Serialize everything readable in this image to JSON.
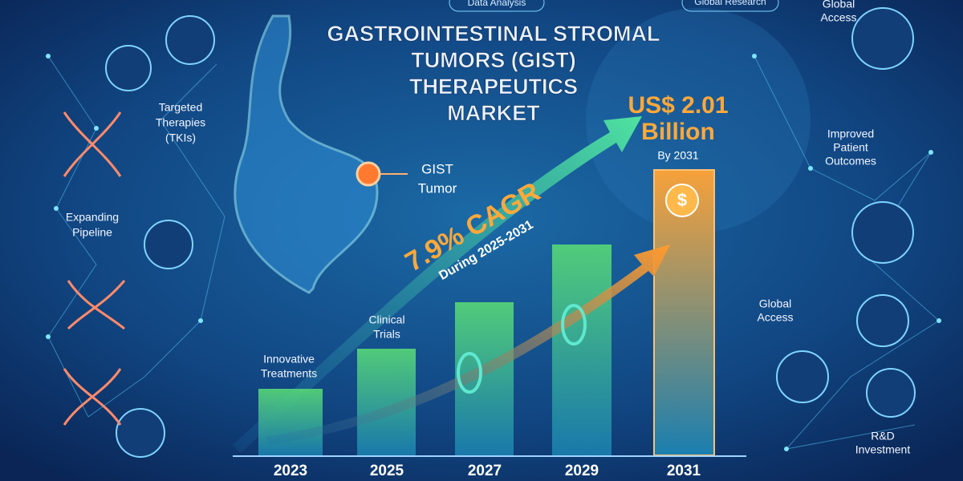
{
  "badges": {
    "left": "Data Analysis",
    "right": "Global Research"
  },
  "title": {
    "lines": [
      "GASTROINTESTINAL STROMAL",
      "TUMORS (GIST)",
      "THERAPEUTICS",
      "MARKET"
    ]
  },
  "market_value": {
    "lines": [
      "US$ 2.01",
      "Billion"
    ],
    "note": "By 2031",
    "icon": "$"
  },
  "growth": {
    "rate": "7.9% CAGR",
    "period": "During 2025-2031"
  },
  "tumor_label": {
    "lines": [
      "GIST",
      "Tumor"
    ]
  },
  "left_labels": [
    {
      "lines": [
        "Targeted",
        "Therapies",
        "(TKIs)"
      ]
    },
    {
      "lines": [
        "Expanding",
        "Pipeline"
      ]
    }
  ],
  "bar_labels": [
    {
      "lines": [
        "Innovative",
        "Treatments"
      ]
    },
    {
      "lines": [
        "Clinical",
        "Trials"
      ]
    }
  ],
  "years": [
    "2023",
    "2025",
    "2027",
    "2029",
    "2031"
  ],
  "right_labels": [
    {
      "lines": [
        "Global",
        "Access"
      ]
    },
    {
      "lines": [
        "Improved",
        "Patient",
        "Outcomes"
      ]
    },
    {
      "lines": [
        "Global",
        "Access"
      ]
    },
    {
      "lines": [
        "R&D",
        "Investment"
      ]
    }
  ]
}
